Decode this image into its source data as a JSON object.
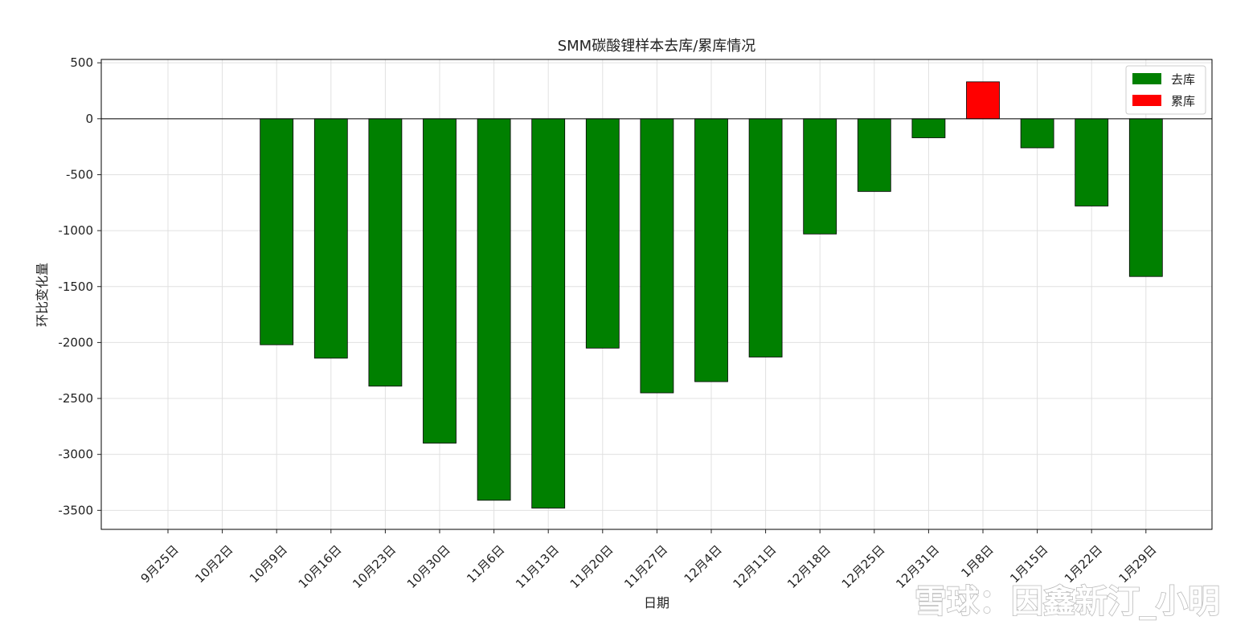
{
  "chart_data": {
    "type": "bar",
    "title": "SMM碳酸锂样本去库/累库情况",
    "xlabel": "日期",
    "ylabel": "环比变化量",
    "categories": [
      "9月25日",
      "10月2日",
      "10月9日",
      "10月16日",
      "10月23日",
      "10月30日",
      "11月6日",
      "11月13日",
      "11月20日",
      "11月27日",
      "12月4日",
      "12月11日",
      "12月18日",
      "12月25日",
      "12月31日",
      "1月8日",
      "1月15日",
      "1月22日",
      "1月29日"
    ],
    "values": [
      null,
      null,
      -2020,
      -2140,
      -2390,
      -2900,
      -3410,
      -3480,
      -2050,
      -2450,
      -2350,
      -2130,
      -1030,
      -650,
      -170,
      330,
      -260,
      -780,
      -1410
    ],
    "ylim": [
      -3670,
      530
    ],
    "yticks": [
      500,
      0,
      -500,
      -1000,
      -1500,
      -2000,
      -2500,
      -3000,
      -3500
    ],
    "grid": true,
    "legend_position": "top-right",
    "legend": [
      {
        "label": "去库",
        "color": "#008000"
      },
      {
        "label": "累库",
        "color": "#ff0000"
      }
    ],
    "colors": {
      "destock": "#008000",
      "restock": "#ff0000"
    }
  },
  "watermark": {
    "text": "雪球：因鑫新汀_小明"
  }
}
